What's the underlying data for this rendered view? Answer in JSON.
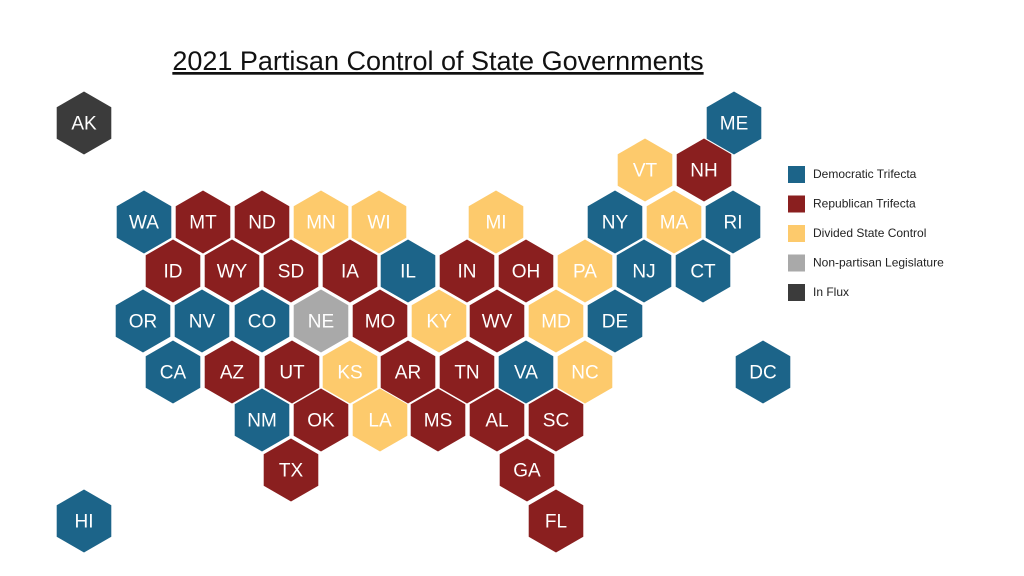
{
  "title": "2021 Partisan Control of State Governments",
  "legend": [
    {
      "label": "Democratic Trifecta",
      "color": "#1c6489"
    },
    {
      "label": "Republican Trifecta",
      "color": "#8a1f1f"
    },
    {
      "label": "Divided State Control",
      "color": "#fdca6c"
    },
    {
      "label": "Non-partisan Legislature",
      "color": "#a9a9a9"
    },
    {
      "label": "In Flux",
      "color": "#3b3b3b"
    }
  ],
  "states": [
    {
      "label": "AK",
      "status": "In Flux"
    },
    {
      "label": "ME",
      "status": "Democratic Trifecta"
    },
    {
      "label": "VT",
      "status": "Divided State Control"
    },
    {
      "label": "NH",
      "status": "Republican Trifecta"
    },
    {
      "label": "WA",
      "status": "Democratic Trifecta"
    },
    {
      "label": "MT",
      "status": "Republican Trifecta"
    },
    {
      "label": "ND",
      "status": "Republican Trifecta"
    },
    {
      "label": "MN",
      "status": "Divided State Control"
    },
    {
      "label": "WI",
      "status": "Divided State Control"
    },
    {
      "label": "MI",
      "status": "Divided State Control"
    },
    {
      "label": "NY",
      "status": "Democratic Trifecta"
    },
    {
      "label": "MA",
      "status": "Divided State Control"
    },
    {
      "label": "RI",
      "status": "Democratic Trifecta"
    },
    {
      "label": "ID",
      "status": "Republican Trifecta"
    },
    {
      "label": "WY",
      "status": "Republican Trifecta"
    },
    {
      "label": "SD",
      "status": "Republican Trifecta"
    },
    {
      "label": "IA",
      "status": "Republican Trifecta"
    },
    {
      "label": "IL",
      "status": "Democratic Trifecta"
    },
    {
      "label": "IN",
      "status": "Republican Trifecta"
    },
    {
      "label": "OH",
      "status": "Republican Trifecta"
    },
    {
      "label": "PA",
      "status": "Divided State Control"
    },
    {
      "label": "NJ",
      "status": "Democratic Trifecta"
    },
    {
      "label": "CT",
      "status": "Democratic Trifecta"
    },
    {
      "label": "OR",
      "status": "Democratic Trifecta"
    },
    {
      "label": "NV",
      "status": "Democratic Trifecta"
    },
    {
      "label": "CO",
      "status": "Democratic Trifecta"
    },
    {
      "label": "NE",
      "status": "Non-partisan Legislature"
    },
    {
      "label": "MO",
      "status": "Republican Trifecta"
    },
    {
      "label": "KY",
      "status": "Divided State Control"
    },
    {
      "label": "WV",
      "status": "Republican Trifecta"
    },
    {
      "label": "MD",
      "status": "Divided State Control"
    },
    {
      "label": "DE",
      "status": "Democratic Trifecta"
    },
    {
      "label": "CA",
      "status": "Democratic Trifecta"
    },
    {
      "label": "AZ",
      "status": "Republican Trifecta"
    },
    {
      "label": "UT",
      "status": "Republican Trifecta"
    },
    {
      "label": "KS",
      "status": "Divided State Control"
    },
    {
      "label": "AR",
      "status": "Republican Trifecta"
    },
    {
      "label": "TN",
      "status": "Republican Trifecta"
    },
    {
      "label": "VA",
      "status": "Democratic Trifecta"
    },
    {
      "label": "NC",
      "status": "Divided State Control"
    },
    {
      "label": "DC",
      "status": "Democratic Trifecta"
    },
    {
      "label": "NM",
      "status": "Democratic Trifecta"
    },
    {
      "label": "OK",
      "status": "Republican Trifecta"
    },
    {
      "label": "LA",
      "status": "Divided State Control"
    },
    {
      "label": "MS",
      "status": "Republican Trifecta"
    },
    {
      "label": "AL",
      "status": "Republican Trifecta"
    },
    {
      "label": "SC",
      "status": "Republican Trifecta"
    },
    {
      "label": "TX",
      "status": "Republican Trifecta"
    },
    {
      "label": "GA",
      "status": "Republican Trifecta"
    },
    {
      "label": "FL",
      "status": "Republican Trifecta"
    },
    {
      "label": "HI",
      "status": "Democratic Trifecta"
    }
  ]
}
